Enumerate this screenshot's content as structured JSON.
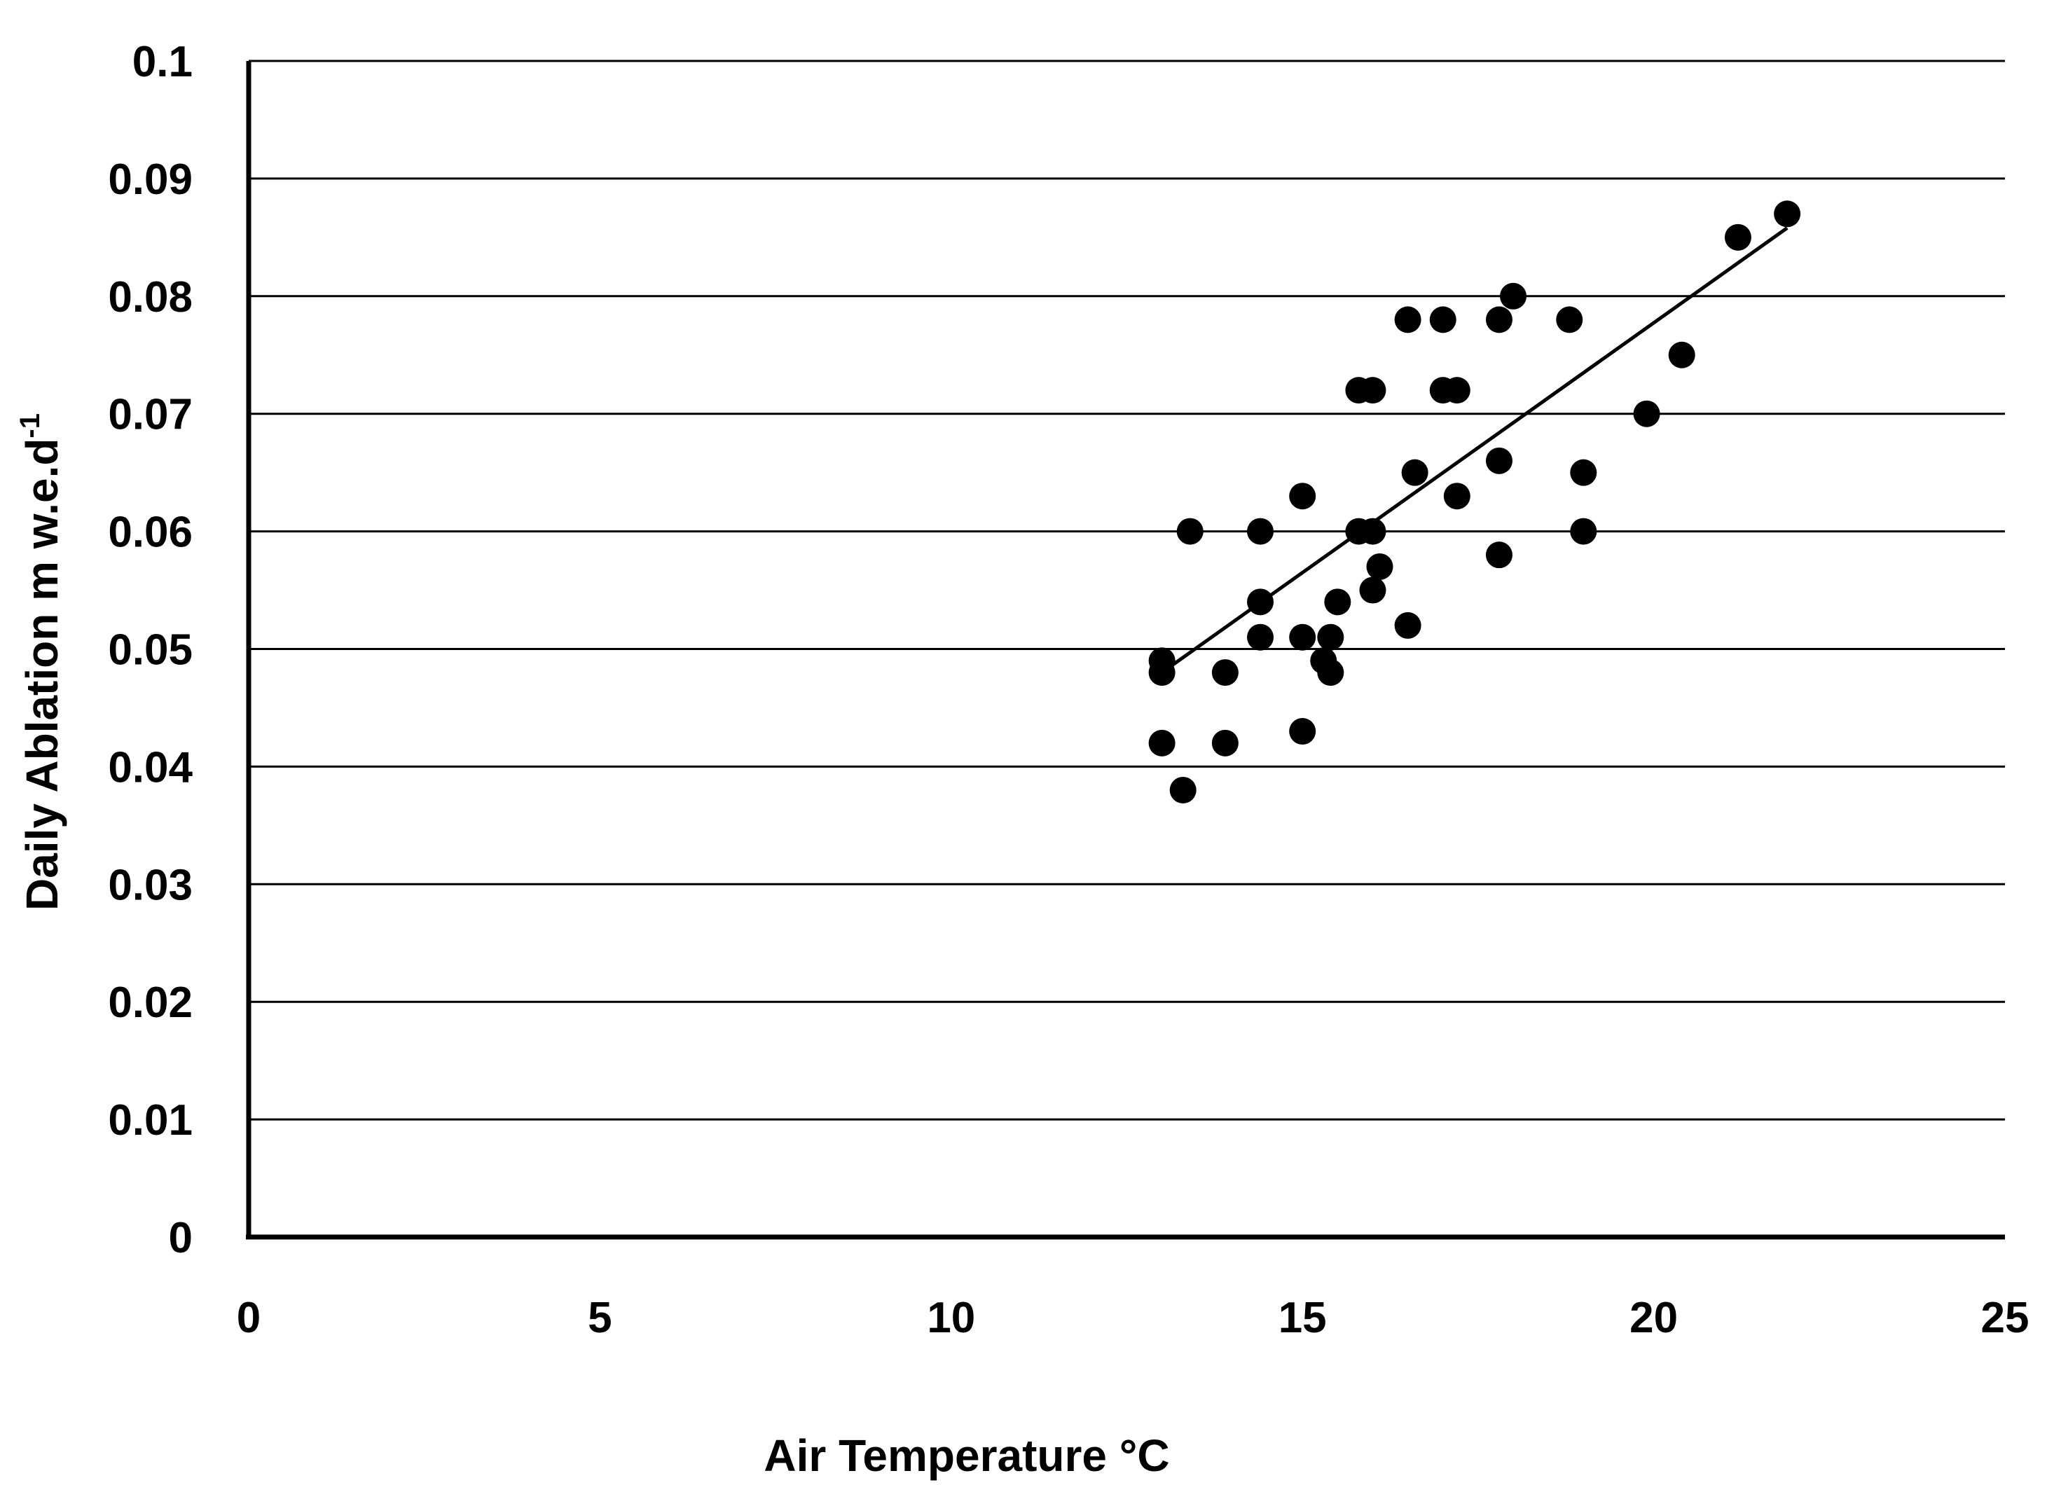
{
  "chart_data": {
    "type": "scatter",
    "title": "",
    "xlabel": "Air Temperature °C",
    "ylabel": "Daily Ablation m w.e.d",
    "ylabel_superscript": "-1",
    "xlim": [
      0,
      25
    ],
    "ylim": [
      0,
      0.1
    ],
    "x_ticks": [
      "0",
      "5",
      "10",
      "15",
      "20",
      "25"
    ],
    "y_ticks": [
      "0",
      "0.01",
      "0.02",
      "0.03",
      "0.04",
      "0.05",
      "0.06",
      "0.07",
      "0.08",
      "0.09",
      "0.1"
    ],
    "grid": "horizontal",
    "legend": "none",
    "series": [
      {
        "points": [
          [
            13.0,
            0.049
          ],
          [
            13.0,
            0.048
          ],
          [
            13.0,
            0.042
          ],
          [
            13.3,
            0.038
          ],
          [
            13.4,
            0.06
          ],
          [
            13.9,
            0.048
          ],
          [
            13.9,
            0.042
          ],
          [
            14.4,
            0.06
          ],
          [
            14.4,
            0.054
          ],
          [
            14.4,
            0.051
          ],
          [
            15.0,
            0.063
          ],
          [
            15.0,
            0.051
          ],
          [
            15.0,
            0.043
          ],
          [
            15.3,
            0.049
          ],
          [
            15.4,
            0.051
          ],
          [
            15.4,
            0.048
          ],
          [
            15.5,
            0.054
          ],
          [
            15.8,
            0.072
          ],
          [
            15.8,
            0.06
          ],
          [
            16.0,
            0.072
          ],
          [
            16.0,
            0.06
          ],
          [
            16.0,
            0.055
          ],
          [
            16.1,
            0.057
          ],
          [
            16.5,
            0.078
          ],
          [
            16.5,
            0.052
          ],
          [
            16.6,
            0.065
          ],
          [
            17.0,
            0.078
          ],
          [
            17.0,
            0.072
          ],
          [
            17.2,
            0.072
          ],
          [
            17.2,
            0.063
          ],
          [
            17.8,
            0.078
          ],
          [
            17.8,
            0.066
          ],
          [
            17.8,
            0.058
          ],
          [
            18.0,
            0.08
          ],
          [
            18.8,
            0.078
          ],
          [
            19.0,
            0.065
          ],
          [
            19.0,
            0.06
          ],
          [
            19.9,
            0.07
          ],
          [
            20.4,
            0.075
          ],
          [
            21.2,
            0.085
          ],
          [
            21.9,
            0.087
          ]
        ]
      }
    ],
    "trendline": {
      "type": "linear",
      "x": [
        13.0,
        21.9
      ],
      "y": [
        0.048,
        0.0858
      ]
    },
    "colors": {
      "marker": "#000000",
      "trendline": "#000000",
      "grid": "#000000",
      "axis": "#000000"
    }
  }
}
